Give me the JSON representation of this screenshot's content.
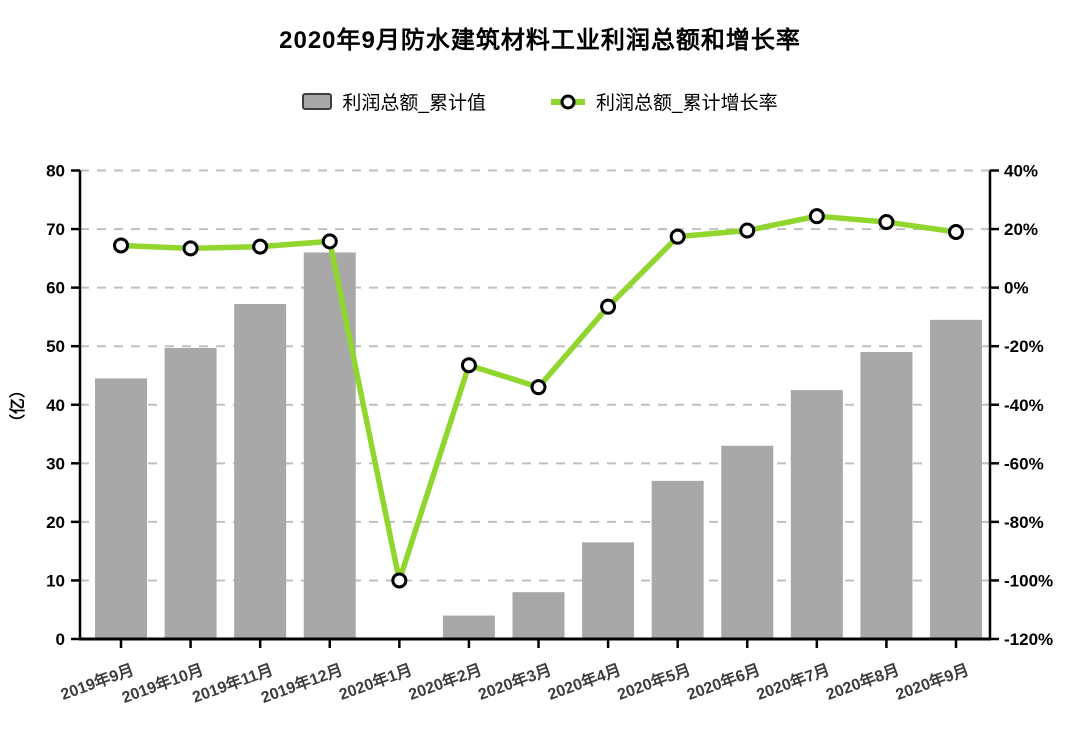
{
  "title": "2020年9月防水建筑材料工业利润总额和增长率",
  "legend": {
    "items": [
      {
        "label": "利润总额_累计值"
      },
      {
        "label": "利润总额_累计增长率"
      }
    ]
  },
  "chart_data": {
    "type": "bar+line",
    "title": "2020年9月防水建筑材料工业利润总额和增长率",
    "legend_position": "top",
    "grid": true,
    "categories": [
      "2019年9月",
      "2019年10月",
      "2019年11月",
      "2019年12月",
      "2020年1月",
      "2020年2月",
      "2020年3月",
      "2020年4月",
      "2020年5月",
      "2020年6月",
      "2020年7月",
      "2020年8月",
      "2020年9月"
    ],
    "series": [
      {
        "name": "利润总额_累计值",
        "type": "bar",
        "y_axis": "left",
        "unit": "亿",
        "values": [
          44.5,
          49.7,
          57.2,
          66,
          null,
          4,
          8,
          16.5,
          27,
          33,
          42.5,
          49,
          54.5
        ]
      },
      {
        "name": "利润总额_累计增长率",
        "type": "line",
        "y_axis": "right",
        "unit": "%",
        "values": [
          14.4,
          13.4,
          14.0,
          15.8,
          -100,
          -26.5,
          -34,
          -6.5,
          17.4,
          19.5,
          24.4,
          22.4,
          19.0
        ]
      }
    ],
    "left_axis": {
      "title": "（亿）",
      "min": 0,
      "max": 80,
      "step": 10,
      "tick_labels": [
        "80",
        "70",
        "60",
        "50",
        "40",
        "30",
        "20",
        "10",
        "0"
      ]
    },
    "right_axis": {
      "title": "",
      "min": -120,
      "max": 40,
      "step": 20,
      "tick_labels": [
        "40%",
        "20%",
        "0%",
        "-20%",
        "-40%",
        "-60%",
        "-80%",
        "-100%",
        "-120%"
      ]
    },
    "colors": {
      "bar": "#a8a8a8",
      "line": "#90d62f",
      "marker_fill": "#ffffff",
      "marker_stroke": "#000000",
      "grid_line": "#c0c0c0",
      "axis": "#000000",
      "axis_text": "#000000",
      "x_label_text": "#3d3d3d",
      "swatch_border": "#3f3f3f"
    }
  }
}
